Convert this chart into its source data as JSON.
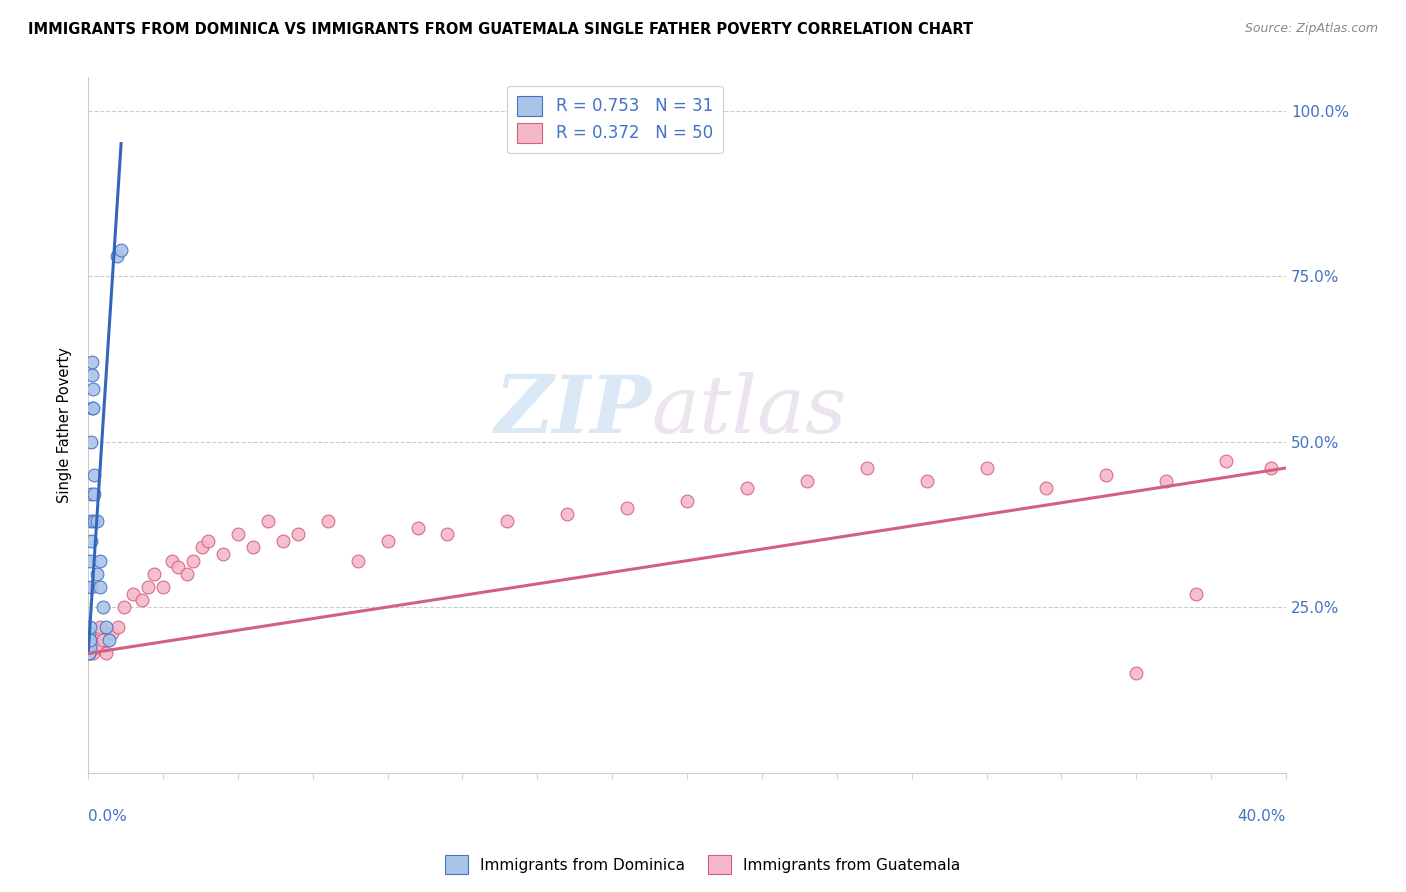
{
  "title": "IMMIGRANTS FROM DOMINICA VS IMMIGRANTS FROM GUATEMALA SINGLE FATHER POVERTY CORRELATION CHART",
  "source": "Source: ZipAtlas.com",
  "ylabel": "Single Father Poverty",
  "xmin": 0.0,
  "xmax": 0.4,
  "ymin": 0.0,
  "ymax": 1.05,
  "dominica_R": 0.753,
  "dominica_N": 31,
  "guatemala_R": 0.372,
  "guatemala_N": 50,
  "dominica_color": "#aac4e8",
  "dominica_edge_color": "#4472c4",
  "guatemala_color": "#f4b8c8",
  "guatemala_edge_color": "#d46080",
  "dominica_line_color": "#3366bb",
  "guatemala_line_color": "#d46080",
  "legend_label_dominica": "Immigrants from Dominica",
  "legend_label_guatemala": "Immigrants from Guatemala",
  "watermark_zip": "ZIP",
  "watermark_atlas": "atlas",
  "dominica_x": [
    0.0002,
    0.0003,
    0.0003,
    0.0004,
    0.0004,
    0.0005,
    0.0005,
    0.0006,
    0.0007,
    0.0008,
    0.0009,
    0.001,
    0.001,
    0.001,
    0.0012,
    0.0013,
    0.0014,
    0.0015,
    0.0016,
    0.0018,
    0.002,
    0.002,
    0.003,
    0.003,
    0.004,
    0.004,
    0.005,
    0.006,
    0.007,
    0.0095,
    0.011
  ],
  "dominica_y": [
    0.18,
    0.19,
    0.2,
    0.18,
    0.21,
    0.19,
    0.22,
    0.2,
    0.32,
    0.28,
    0.35,
    0.38,
    0.42,
    0.5,
    0.55,
    0.6,
    0.62,
    0.55,
    0.58,
    0.45,
    0.38,
    0.42,
    0.3,
    0.38,
    0.28,
    0.32,
    0.25,
    0.22,
    0.2,
    0.78,
    0.79
  ],
  "guatemala_x": [
    0.0003,
    0.0005,
    0.001,
    0.0015,
    0.002,
    0.003,
    0.004,
    0.005,
    0.006,
    0.008,
    0.01,
    0.012,
    0.015,
    0.018,
    0.02,
    0.022,
    0.025,
    0.028,
    0.03,
    0.033,
    0.035,
    0.038,
    0.04,
    0.045,
    0.05,
    0.055,
    0.06,
    0.065,
    0.07,
    0.08,
    0.09,
    0.1,
    0.11,
    0.12,
    0.14,
    0.16,
    0.18,
    0.2,
    0.22,
    0.24,
    0.26,
    0.28,
    0.3,
    0.32,
    0.34,
    0.36,
    0.38,
    0.35,
    0.37,
    0.395
  ],
  "guatemala_y": [
    0.19,
    0.18,
    0.19,
    0.18,
    0.2,
    0.19,
    0.22,
    0.2,
    0.18,
    0.21,
    0.22,
    0.25,
    0.27,
    0.26,
    0.28,
    0.3,
    0.28,
    0.32,
    0.31,
    0.3,
    0.32,
    0.34,
    0.35,
    0.33,
    0.36,
    0.34,
    0.38,
    0.35,
    0.36,
    0.38,
    0.32,
    0.35,
    0.37,
    0.36,
    0.38,
    0.39,
    0.4,
    0.41,
    0.43,
    0.44,
    0.46,
    0.44,
    0.46,
    0.43,
    0.45,
    0.44,
    0.47,
    0.15,
    0.27,
    0.46
  ],
  "dominica_trendline_x": [
    0.0,
    0.011
  ],
  "dominica_trendline_y": [
    0.18,
    0.95
  ],
  "guatemala_trendline_x": [
    0.0,
    0.4
  ],
  "guatemala_trendline_y": [
    0.18,
    0.46
  ]
}
